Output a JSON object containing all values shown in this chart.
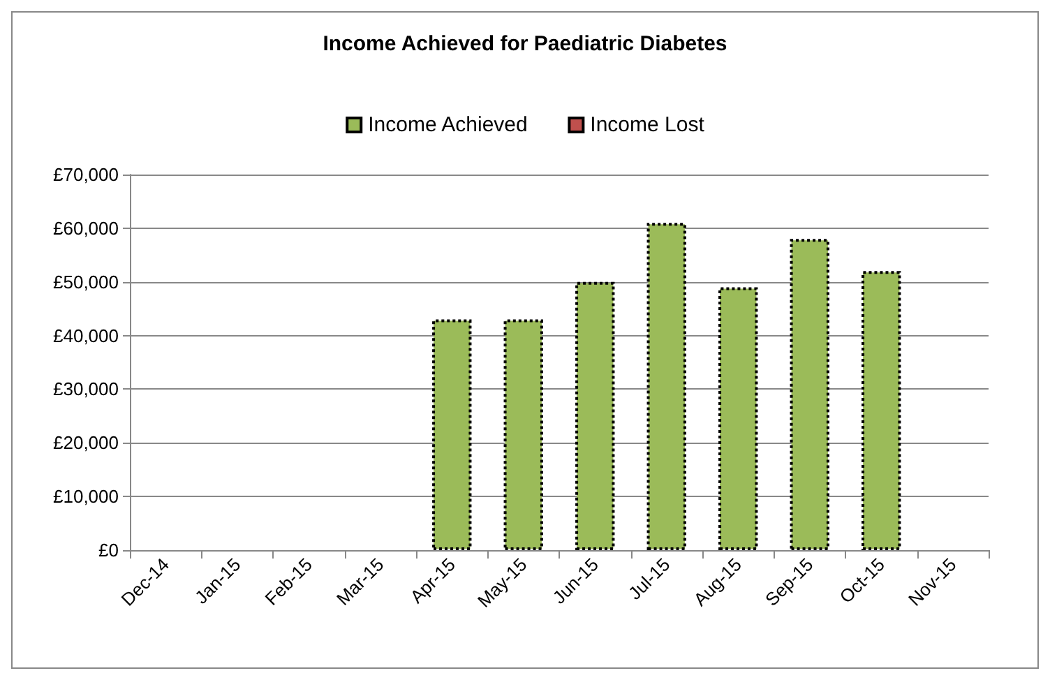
{
  "chart_data": {
    "type": "bar",
    "title": "Income Achieved for Paediatric Diabetes",
    "categories": [
      "Dec-14",
      "Jan-15",
      "Feb-15",
      "Mar-15",
      "Apr-15",
      "May-15",
      "Jun-15",
      "Jul-15",
      "Aug-15",
      "Sep-15",
      "Oct-15",
      "Nov-15"
    ],
    "series": [
      {
        "name": "Income Achieved",
        "color": "#9bbb59",
        "values": [
          null,
          null,
          null,
          null,
          43000,
          43000,
          50000,
          61000,
          49000,
          58000,
          52000,
          null
        ]
      },
      {
        "name": "Income Lost",
        "color": "#c0504d",
        "values": [
          null,
          null,
          null,
          null,
          null,
          null,
          null,
          null,
          null,
          null,
          null,
          null
        ]
      }
    ],
    "ylim": [
      0,
      70000
    ],
    "yticks": [
      {
        "value": 0,
        "label": "£0"
      },
      {
        "value": 10000,
        "label": "£10,000"
      },
      {
        "value": 20000,
        "label": "£20,000"
      },
      {
        "value": 30000,
        "label": "£30,000"
      },
      {
        "value": 40000,
        "label": "£40,000"
      },
      {
        "value": 50000,
        "label": "£50,000"
      },
      {
        "value": 60000,
        "label": "£60,000"
      },
      {
        "value": 70000,
        "label": "£70,000"
      }
    ],
    "grid": "y",
    "legend": "top"
  }
}
